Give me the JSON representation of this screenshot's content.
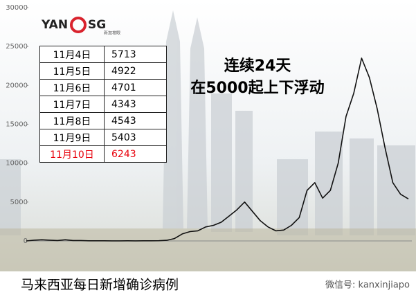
{
  "chart_data": {
    "type": "line",
    "caption": "马来西亚每日新增确诊病例",
    "watermark": "微信号: kanxinjiapo",
    "logo": {
      "left": "YAN",
      "right": "SG",
      "sub": "新加坡眼"
    },
    "annotation": [
      "连续24天",
      "在5000起上下浮动"
    ],
    "color": "#111111",
    "values": [
      0,
      100,
      150,
      100,
      50,
      150,
      50,
      50,
      20,
      20,
      15,
      10,
      10,
      15,
      10,
      20,
      20,
      30,
      80,
      300,
      900,
      1200,
      1300,
      1800,
      2000,
      2400,
      3200,
      4000,
      5000,
      3800,
      2600,
      1800,
      1300,
      1400,
      2000,
      3000,
      6500,
      7500,
      5500,
      6500,
      10000,
      16000,
      19000,
      23500,
      21000,
      17000,
      12000,
      7500,
      6000,
      5400
    ],
    "ylim": [
      0,
      30000
    ],
    "yticks": [
      0,
      5000,
      10000,
      15000,
      20000,
      25000,
      30000
    ],
    "table": {
      "rows": [
        [
          "11月4日",
          5713
        ],
        [
          "11月5日",
          4922
        ],
        [
          "11月6日",
          4701
        ],
        [
          "11月7日",
          4343
        ],
        [
          "11月8日",
          4543
        ],
        [
          "11月9日",
          5403
        ],
        [
          "11月10日",
          6243
        ]
      ]
    }
  }
}
